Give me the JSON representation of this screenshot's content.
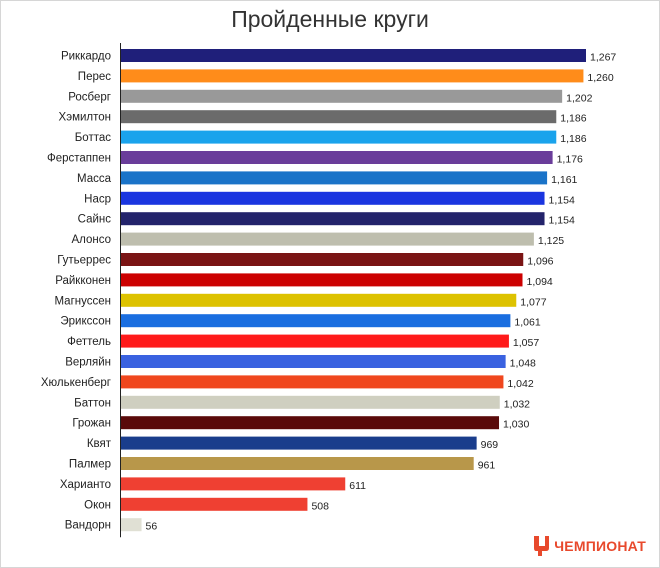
{
  "chart_data": {
    "type": "bar",
    "orientation": "horizontal",
    "title": "Пройденные круги",
    "categories": [
      "Риккардо",
      "Перес",
      "Росберг",
      "Хэмилтон",
      "Боттас",
      "Ферстаппен",
      "Масса",
      "Наср",
      "Сайнс",
      "Алонсо",
      "Гутьеррес",
      "Райкконен",
      "Магнуссен",
      "Эрикссон",
      "Феттель",
      "Верляйн",
      "Хюлькенберг",
      "Баттон",
      "Грожан",
      "Квят",
      "Палмер",
      "Харианто",
      "Окон",
      "Вандорн"
    ],
    "values": [
      1267,
      1260,
      1202,
      1186,
      1186,
      1176,
      1161,
      1154,
      1154,
      1125,
      1096,
      1094,
      1077,
      1061,
      1057,
      1048,
      1042,
      1032,
      1030,
      969,
      961,
      611,
      508,
      56
    ],
    "value_labels": [
      "1,267",
      "1,260",
      "1,202",
      "1,186",
      "1,186",
      "1,176",
      "1,161",
      "1,154",
      "1,154",
      "1,125",
      "1,096",
      "1,094",
      "1,077",
      "1,061",
      "1,057",
      "1,048",
      "1,042",
      "1,032",
      "1,030",
      "969",
      "961",
      "611",
      "508",
      "56"
    ],
    "colors": [
      "#1f1f7a",
      "#ff8c1a",
      "#999999",
      "#6b6b6b",
      "#1aa3ec",
      "#6a3d9a",
      "#1a73c8",
      "#1a35e0",
      "#23236b",
      "#bebeae",
      "#7a1414",
      "#cc0000",
      "#ddc200",
      "#1a6ee0",
      "#ff1a1a",
      "#3a62e0",
      "#f0471e",
      "#cfcfc0",
      "#5a0a0a",
      "#1a3d8c",
      "#b8974a",
      "#ef4032",
      "#ef4032",
      "#e0e0d4"
    ],
    "xlim": [
      0,
      1267
    ],
    "grid": false,
    "legend": "none"
  },
  "brand": {
    "name": "ЧЕМПИОНАТ",
    "color": "#e8492c"
  }
}
